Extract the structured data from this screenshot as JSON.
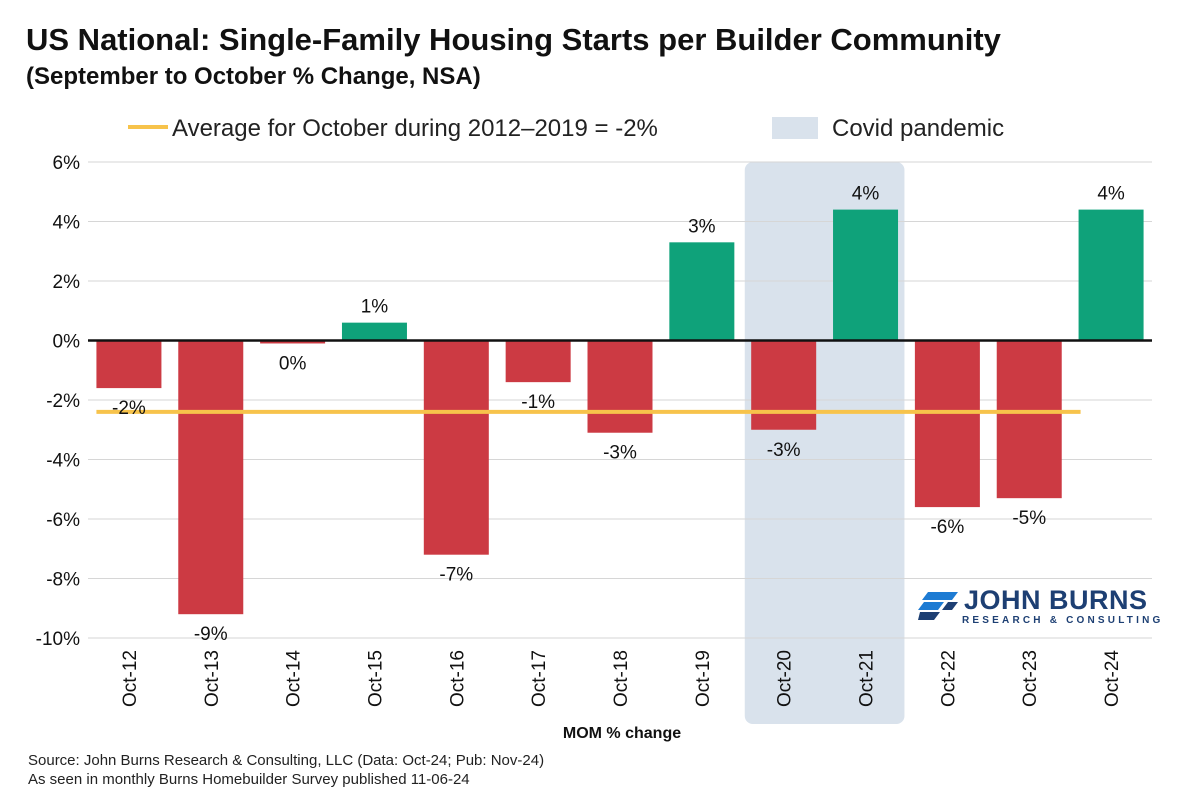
{
  "header": {
    "title": "US National: Single-Family Housing Starts per Builder Community",
    "subtitle": "(September to October % Change, NSA)"
  },
  "chart_data": {
    "type": "bar",
    "title": "US National: Single-Family Housing Starts per Builder Community",
    "subtitle": "(September to October % Change, NSA)",
    "categories": [
      "Oct-12",
      "Oct-13",
      "Oct-14",
      "Oct-15",
      "Oct-16",
      "Oct-17",
      "Oct-18",
      "Oct-19",
      "Oct-20",
      "Oct-21",
      "Oct-22",
      "Oct-23",
      "Oct-24"
    ],
    "values": [
      -1.6,
      -9.2,
      -0.1,
      0.6,
      -7.2,
      -1.4,
      -3.1,
      3.3,
      -3.0,
      4.4,
      -5.6,
      -5.3,
      4.4
    ],
    "data_labels": [
      "-2%",
      "-9%",
      "0%",
      "1%",
      "-7%",
      "-1%",
      "-3%",
      "3%",
      "-3%",
      "4%",
      "-6%",
      "-5%",
      "4%"
    ],
    "ylim": [
      -10,
      6
    ],
    "yticks": [
      6,
      4,
      2,
      0,
      -2,
      -4,
      -6,
      -8,
      -10
    ],
    "ytick_labels": [
      "6%",
      "4%",
      "2%",
      "0%",
      "-2%",
      "-4%",
      "-6%",
      "-8%",
      "-10%"
    ],
    "xlabel": "MOM % change",
    "ylabel": "",
    "grid": true,
    "colors": {
      "positive": "#0fa27a",
      "negative": "#cc3a43",
      "average_line": "#f7c34b",
      "covid_band": "#d9e2ec",
      "zero_line": "#111111",
      "grid": "#d6d6d6"
    },
    "reference_line": {
      "value": -2.4,
      "label": "Average for October during 2012–2019 = -2%"
    },
    "shaded_region": {
      "start": "Oct-20",
      "end": "Oct-21",
      "label": "Covid pandemic"
    },
    "legend": [
      {
        "label": "Average for October during 2012–2019 = -2%",
        "type": "line"
      },
      {
        "label": "Covid pandemic",
        "type": "box"
      }
    ]
  },
  "footer": {
    "source": "Source: John Burns Research & Consulting, LLC (Data: Oct-24; Pub: Nov-24)",
    "note": "As seen in monthly Burns Homebuilder Survey published 11-06-24"
  },
  "logo": {
    "name": "JOHN BURNS",
    "tagline": "RESEARCH & CONSULTING",
    "color": "#1d3f73"
  }
}
